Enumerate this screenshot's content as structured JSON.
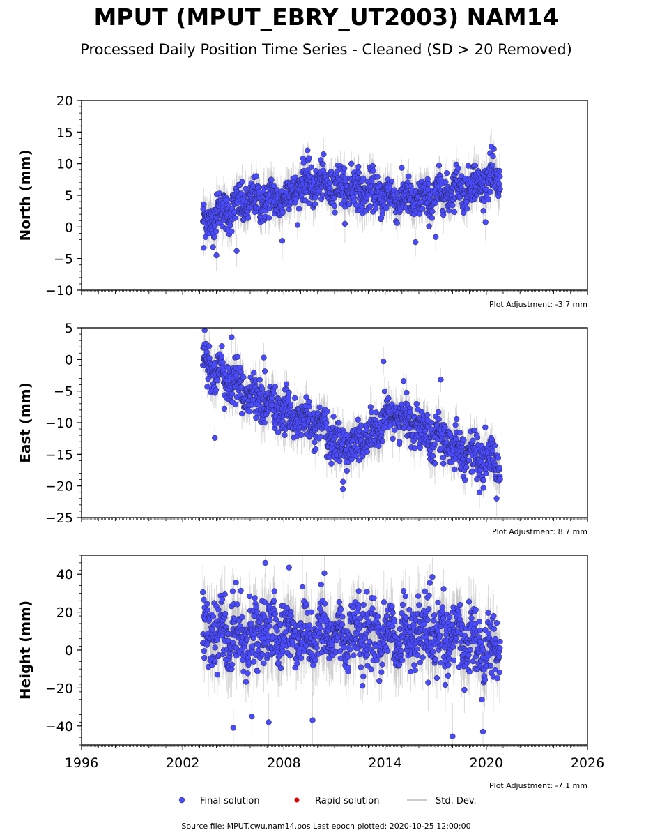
{
  "title": "MPUT (MPUT_EBRY_UT2003) NAM14",
  "subtitle": "Processed Daily Position Time Series - Cleaned (SD > 20 Removed)",
  "footer": "Source file: MPUT.cwu.nam14.pos  Last epoch plotted: 2020-10-25 12:00:00",
  "legend": {
    "final": "Final solution",
    "rapid": "Rapid solution",
    "std": "Std. Dev."
  },
  "colors": {
    "final": "#4a4aff",
    "rapid": "#e00000",
    "std": "#bbbbbb",
    "axis": "#000000"
  },
  "chart_data": [
    {
      "type": "scatter",
      "ylabel": "North (mm)",
      "xlim": [
        1996,
        2026
      ],
      "ylim": [
        -10,
        20
      ],
      "yticks": [
        -10,
        -5,
        0,
        5,
        10,
        15,
        20
      ],
      "ytick_labels": [
        "−10",
        "−5",
        "0",
        "5",
        "10",
        "15",
        "20"
      ],
      "xticks": [
        1996,
        2002,
        2008,
        2014,
        2020,
        2026
      ],
      "xtick_labels": [],
      "adjustment": "Plot Adjustment: -3.7 mm",
      "series": [
        {
          "name": "Final solution",
          "data_range": [
            2003.2,
            2020.82
          ],
          "trend": [
            [
              2003.2,
              0.5
            ],
            [
              2004.0,
              2.0
            ],
            [
              2006.0,
              4.0
            ],
            [
              2008.0,
              4.5
            ],
            [
              2009.0,
              6.8
            ],
            [
              2011.0,
              6.5
            ],
            [
              2013.0,
              5.5
            ],
            [
              2016.0,
              4.0
            ],
            [
              2018.0,
              6.0
            ],
            [
              2020.82,
              7.5
            ]
          ],
          "scatter_sd": 1.5,
          "outliers": [
            [
              2003.25,
              -3.3
            ],
            [
              2004.0,
              -4.5
            ],
            [
              2005.2,
              -3.8
            ],
            [
              2007.9,
              -2.2
            ],
            [
              2009.4,
              12.1
            ],
            [
              2012.0,
              10.0
            ],
            [
              2015.8,
              -2.4
            ],
            [
              2017.0,
              -1.6
            ],
            [
              2020.3,
              12.7
            ]
          ]
        }
      ]
    },
    {
      "type": "scatter",
      "ylabel": "East (mm)",
      "xlim": [
        1996,
        2026
      ],
      "ylim": [
        -25,
        5
      ],
      "yticks": [
        -25,
        -20,
        -15,
        -10,
        -5,
        0,
        5
      ],
      "ytick_labels": [
        "−25",
        "−20",
        "−15",
        "−10",
        "−5",
        "0",
        "5"
      ],
      "xticks": [
        1996,
        2002,
        2008,
        2014,
        2020,
        2026
      ],
      "xtick_labels": [],
      "adjustment": "Plot Adjustment: 8.7 mm",
      "series": [
        {
          "name": "Final solution",
          "data_range": [
            2003.2,
            2020.82
          ],
          "trend": [
            [
              2003.2,
              0.0
            ],
            [
              2004.0,
              -2.0
            ],
            [
              2006.0,
              -5.5
            ],
            [
              2008.0,
              -8.5
            ],
            [
              2010.0,
              -10.5
            ],
            [
              2011.5,
              -14.0
            ],
            [
              2013.5,
              -11.5
            ],
            [
              2014.5,
              -8.5
            ],
            [
              2016.0,
              -10.5
            ],
            [
              2017.5,
              -13.0
            ],
            [
              2019.5,
              -15.5
            ],
            [
              2020.82,
              -16.5
            ]
          ],
          "scatter_sd": 1.6,
          "outliers": [
            [
              2003.3,
              4.6
            ],
            [
              2003.9,
              -12.4
            ],
            [
              2004.9,
              3.5
            ],
            [
              2006.8,
              0.3
            ],
            [
              2011.5,
              -20.5
            ],
            [
              2013.9,
              -0.3
            ],
            [
              2017.3,
              -3.2
            ],
            [
              2019.6,
              -21.0
            ]
          ]
        }
      ]
    },
    {
      "type": "scatter",
      "ylabel": "Height (mm)",
      "xlim": [
        1996,
        2026
      ],
      "ylim": [
        -50,
        50
      ],
      "yticks": [
        -40,
        -20,
        0,
        20,
        40
      ],
      "ytick_labels": [
        "−40",
        "−20",
        "0",
        "20",
        "40"
      ],
      "xticks": [
        1996,
        2002,
        2008,
        2014,
        2020,
        2026
      ],
      "xtick_labels": [
        "1996",
        "2002",
        "2008",
        "2014",
        "2020",
        "2026"
      ],
      "adjustment": "Plot Adjustment: -7.1 mm",
      "series": [
        {
          "name": "Final solution",
          "data_range": [
            2003.2,
            2020.82
          ],
          "trend": [
            [
              2003.2,
              8.0
            ],
            [
              2005.0,
              8.0
            ],
            [
              2008.0,
              9.0
            ],
            [
              2011.0,
              8.0
            ],
            [
              2014.0,
              8.0
            ],
            [
              2017.0,
              7.0
            ],
            [
              2019.0,
              5.0
            ],
            [
              2020.82,
              0.0
            ]
          ],
          "scatter_sd": 8.5,
          "outliers": [
            [
              2003.2,
              30.5
            ],
            [
              2005.0,
              -41.0
            ],
            [
              2006.1,
              -35.0
            ],
            [
              2006.9,
              46.0
            ],
            [
              2007.1,
              -38.0
            ],
            [
              2008.3,
              43.5
            ],
            [
              2009.7,
              -37.0
            ],
            [
              2010.4,
              40.5
            ],
            [
              2016.8,
              38.5
            ],
            [
              2018.0,
              -45.5
            ],
            [
              2019.8,
              -43.0
            ]
          ]
        }
      ]
    }
  ]
}
